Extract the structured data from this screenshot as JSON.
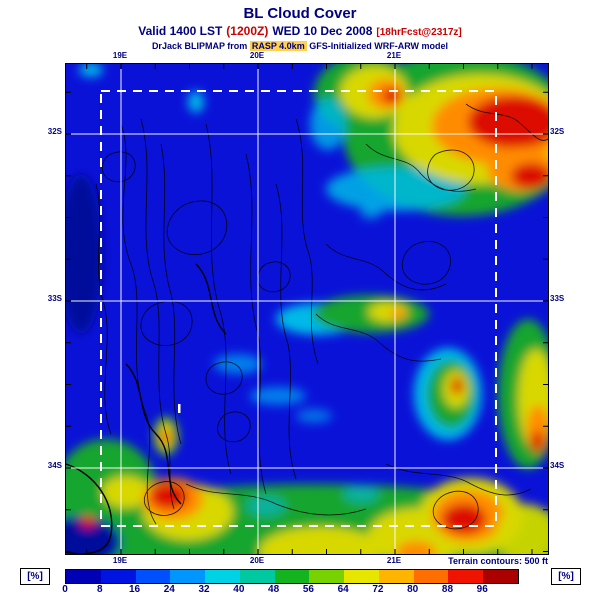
{
  "header": {
    "title": "BL Cloud Cover",
    "valid_prefix": "Valid 1400 LST",
    "valid_zulu": "(1200Z)",
    "valid_date": "WED 10 Dec 2008",
    "valid_fcst": "[18hrFcst@2317z]",
    "model_prefix": "DrJack BLIPMAP from",
    "model_highlight": "RASP 4.0km",
    "model_suffix": "GFS-Initialized WRF-ARW model"
  },
  "map": {
    "top_labels": [
      "19E",
      "20E",
      "21E"
    ],
    "bottom_labels": [
      "19E",
      "20E",
      "21E"
    ],
    "left_labels": [
      "32S",
      "33S",
      "34S"
    ],
    "right_labels": [
      "32S",
      "33S",
      "34S"
    ],
    "terrain_note": "Terrain contours: 500 ft"
  },
  "colorbar": {
    "unit_label": "[%]",
    "ticks": [
      "0",
      "8",
      "16",
      "24",
      "32",
      "40",
      "48",
      "56",
      "64",
      "72",
      "80",
      "88",
      "96"
    ],
    "segment_colors": [
      "#0000b4",
      "#0014e1",
      "#0050ff",
      "#0096ff",
      "#00d2e6",
      "#00c8a0",
      "#14b41e",
      "#78d200",
      "#e6e600",
      "#ffb400",
      "#ff6e00",
      "#f01400",
      "#aa0000"
    ]
  },
  "colors": {
    "map_background": "#0a12d8",
    "title_text": "#000080",
    "accent_red": "#cc0000"
  }
}
